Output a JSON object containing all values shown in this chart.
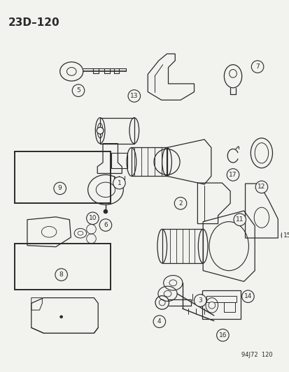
{
  "title": "23D–120",
  "footer": "94J72  120",
  "bg_color": "#f2f2ee",
  "line_color": "#2a2a2a",
  "figsize": [
    4.14,
    5.33
  ],
  "dpi": 100
}
